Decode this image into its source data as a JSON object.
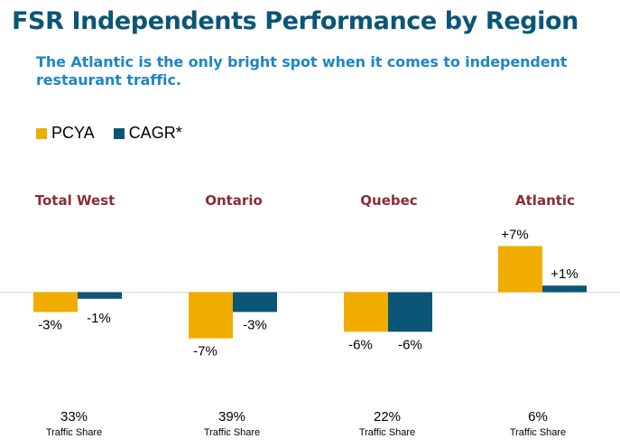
{
  "title": "FSR Independents Performance by Region",
  "subtitle": "The Atlantic is the only bright spot when it comes to independent restaurant traffic.",
  "colors": {
    "pcya": "#f0ad00",
    "cagr": "#0b5576",
    "title": "#0b5576",
    "subtitle": "#1e86c6",
    "region": "#8b2c34"
  },
  "chart_data": {
    "type": "bar",
    "categories": [
      "Total West",
      "Ontario",
      "Quebec",
      "Atlantic"
    ],
    "series": [
      {
        "name": "PCYA",
        "values": [
          -3,
          -7,
          -6,
          7
        ],
        "labels": [
          "-3%",
          "-7%",
          "-6%",
          "+7%"
        ]
      },
      {
        "name": "CAGR*",
        "values": [
          -1,
          -3,
          -6,
          1
        ],
        "labels": [
          "-1%",
          "-3%",
          "-6%",
          "+1%"
        ]
      }
    ],
    "traffic_share": [
      "33%",
      "39%",
      "22%",
      "6%"
    ],
    "traffic_share_label": "Traffic Share",
    "legend_position": "top-left",
    "grid": false
  }
}
